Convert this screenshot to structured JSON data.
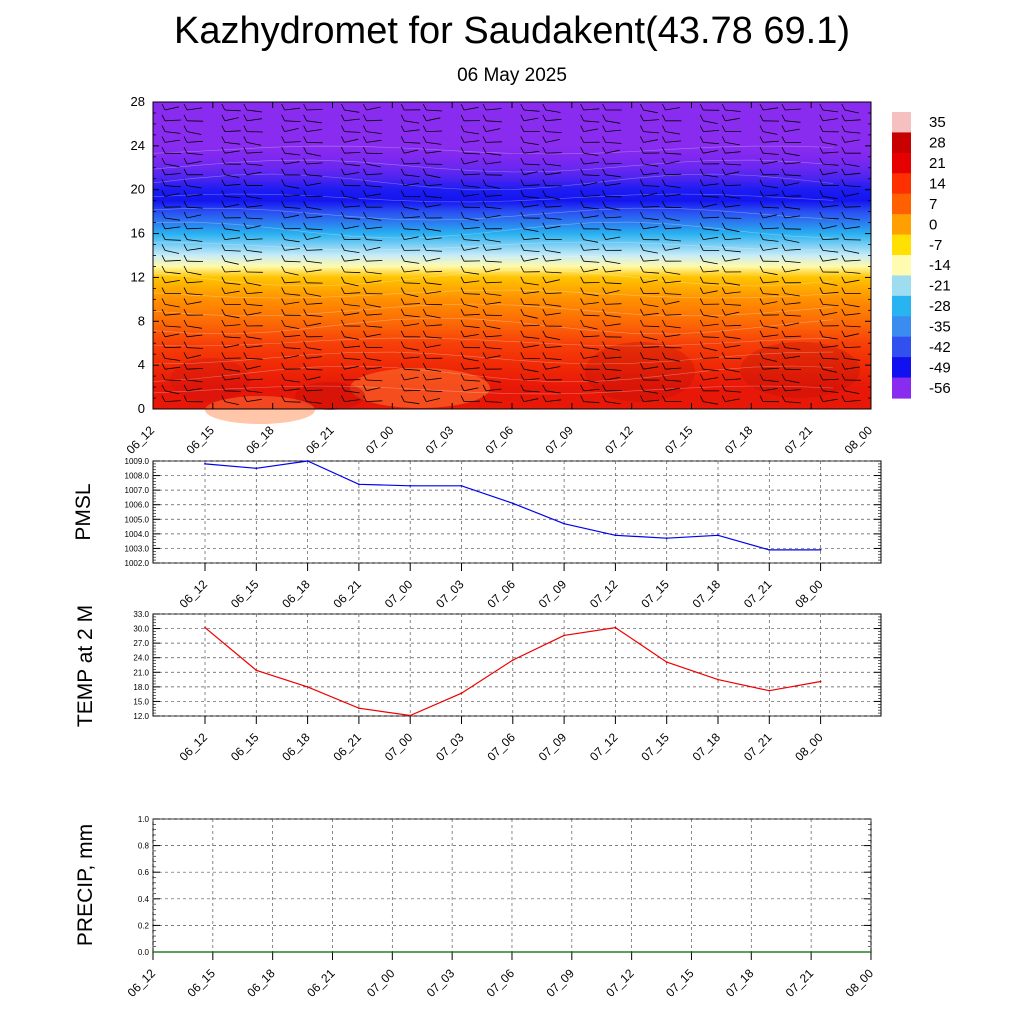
{
  "title": "Kazhydromet for Saudakent(43.78 69.1)",
  "subtitle": "06 May 2025",
  "chart_data": [
    {
      "type": "heatmap",
      "description": "Vertical temperature cross-section with wind barbs",
      "ylim": [
        0,
        28
      ],
      "yticks": [
        "0",
        "4",
        "8",
        "12",
        "16",
        "20",
        "24",
        "28"
      ],
      "xticks": [
        "06_12",
        "06_15",
        "06_18",
        "06_21",
        "07_00",
        "07_03",
        "07_06",
        "07_09",
        "07_12",
        "07_15",
        "07_18",
        "07_21",
        "08_00"
      ],
      "colorbar": {
        "labels": [
          "35",
          "28",
          "21",
          "14",
          "7",
          "0",
          "-7",
          "-14",
          "-21",
          "-28",
          "-35",
          "-42",
          "-49",
          "-56"
        ],
        "colors": [
          "#f4c0c0",
          "#c80000",
          "#e60000",
          "#ff3000",
          "#ff6000",
          "#ffa000",
          "#ffe000",
          "#fffbb0",
          "#9edcf0",
          "#28b4f0",
          "#3a8cf0",
          "#3050f0",
          "#1010f0",
          "#8a2cf0"
        ]
      },
      "profile_levels": [
        0,
        2,
        4,
        6,
        8,
        10,
        12,
        13,
        14,
        15,
        16,
        17,
        18,
        19,
        20,
        21,
        22,
        23,
        24,
        28
      ],
      "profile_colors": [
        "#e81808",
        "#e81808",
        "#f02a06",
        "#f74008",
        "#fc6c06",
        "#ff9000",
        "#ffc400",
        "#fffaa8",
        "#c8ecf8",
        "#78cdf4",
        "#28b0f0",
        "#2c7cf0",
        "#2a4ef2",
        "#1414f0",
        "#1c1cf2",
        "#4a24f0",
        "#6a28f0",
        "#8028f0",
        "#8a2cf0",
        "#8a2cf0"
      ]
    },
    {
      "type": "line",
      "ylabel": "PMSL",
      "ylim": [
        1002.0,
        1009.0
      ],
      "yticks": [
        "1002.0",
        "1003.0",
        "1004.0",
        "1005.0",
        "1006.0",
        "1007.0",
        "1008.0",
        "1009.0"
      ],
      "categories": [
        "06_12",
        "06_15",
        "06_18",
        "06_21",
        "07_00",
        "07_03",
        "07_06",
        "07_09",
        "07_12",
        "07_15",
        "07_18",
        "07_21",
        "08_00"
      ],
      "series": [
        {
          "values": [
            1008.8,
            1008.5,
            1009.0,
            1007.4,
            1007.3,
            1007.3,
            1006.1,
            1004.7,
            1003.9,
            1003.7,
            1003.9,
            1002.9,
            1002.9
          ],
          "color": "#0000ee"
        }
      ]
    },
    {
      "type": "line",
      "ylabel": "TEMP at 2 M",
      "ylim": [
        12.0,
        33.0
      ],
      "yticks": [
        "12.0",
        "15.0",
        "18.0",
        "21.0",
        "24.0",
        "27.0",
        "30.0",
        "33.0"
      ],
      "categories": [
        "06_12",
        "06_15",
        "06_18",
        "06_21",
        "07_00",
        "07_03",
        "07_06",
        "07_09",
        "07_12",
        "07_15",
        "07_18",
        "07_21",
        "08_00"
      ],
      "series": [
        {
          "values": [
            30.2,
            21.4,
            18.0,
            13.6,
            12.1,
            16.7,
            23.5,
            28.6,
            30.2,
            23.1,
            19.5,
            17.2,
            19.1
          ],
          "color": "#ee0000"
        }
      ]
    },
    {
      "type": "line",
      "ylabel": "PRECIP, mm",
      "ylim": [
        0.0,
        1.0
      ],
      "yticks": [
        "0.0",
        "0.2",
        "0.4",
        "0.6",
        "0.8",
        "1.0"
      ],
      "categories": [
        "06_12",
        "06_15",
        "06_18",
        "06_21",
        "07_00",
        "07_03",
        "07_06",
        "07_09",
        "07_12",
        "07_15",
        "07_18",
        "07_21",
        "08_00"
      ],
      "series": [
        {
          "values": [
            0,
            0,
            0,
            0,
            0,
            0,
            0,
            0,
            0,
            0,
            0,
            0,
            0
          ],
          "color": "#006400"
        }
      ]
    }
  ]
}
